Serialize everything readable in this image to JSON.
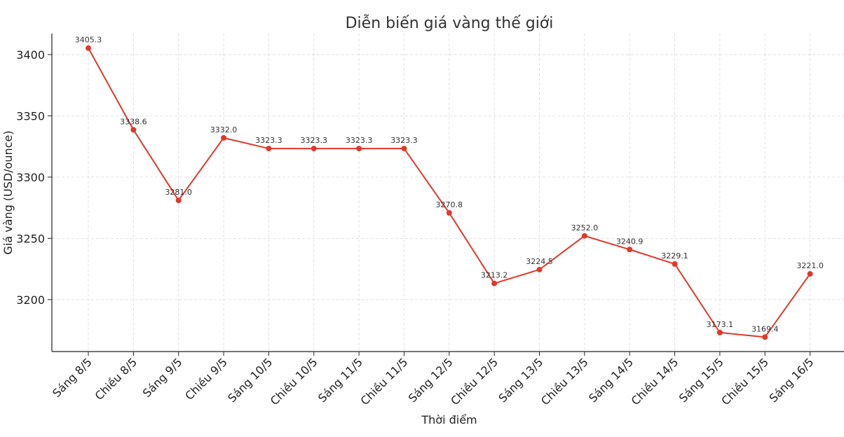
{
  "chart_data": {
    "type": "line",
    "title": "Diễn biến giá vàng thế giới",
    "xlabel": "Thời điểm",
    "ylabel": "Giá vàng (USD/ounce)",
    "categories": [
      "Sáng 8/5",
      "Chiều 8/5",
      "Sáng 9/5",
      "Chiều 9/5",
      "Sáng 10/5",
      "Chiều 10/5",
      "Sáng 11/5",
      "Chiều 11/5",
      "Sáng 12/5",
      "Chiều 12/5",
      "Sáng 13/5",
      "Chiều 13/5",
      "Sáng 14/5",
      "Chiều 14/5",
      "Sáng 15/5",
      "Chiều 15/5",
      "Sáng 16/5"
    ],
    "series": [
      {
        "values": [
          3405.3,
          3338.6,
          3281.0,
          3332.0,
          3323.3,
          3323.3,
          3323.3,
          3323.3,
          3270.8,
          3213.2,
          3224.5,
          3252.0,
          3240.9,
          3229.1,
          3173.1,
          3169.4,
          3221.0
        ],
        "data_labels": [
          "3405.3",
          "3338.6",
          "3281.0",
          "3332.0",
          "3323.3",
          "3323.3",
          "3323.3",
          "3323.3",
          "3270.8",
          "3213.2",
          "3224.5",
          "3252.0",
          "3240.9",
          "3229.1",
          "3173.1",
          "3169.4",
          "3221.0"
        ],
        "color": "#e0392b",
        "marker": "circle"
      }
    ],
    "yticks": [
      3200,
      3250,
      3300,
      3350,
      3400
    ],
    "ytick_labels": [
      "3200",
      "3250",
      "3300",
      "3350",
      "3400"
    ],
    "ylim": [
      3157.6,
      3417.1
    ],
    "grid": true,
    "legend": "none"
  }
}
